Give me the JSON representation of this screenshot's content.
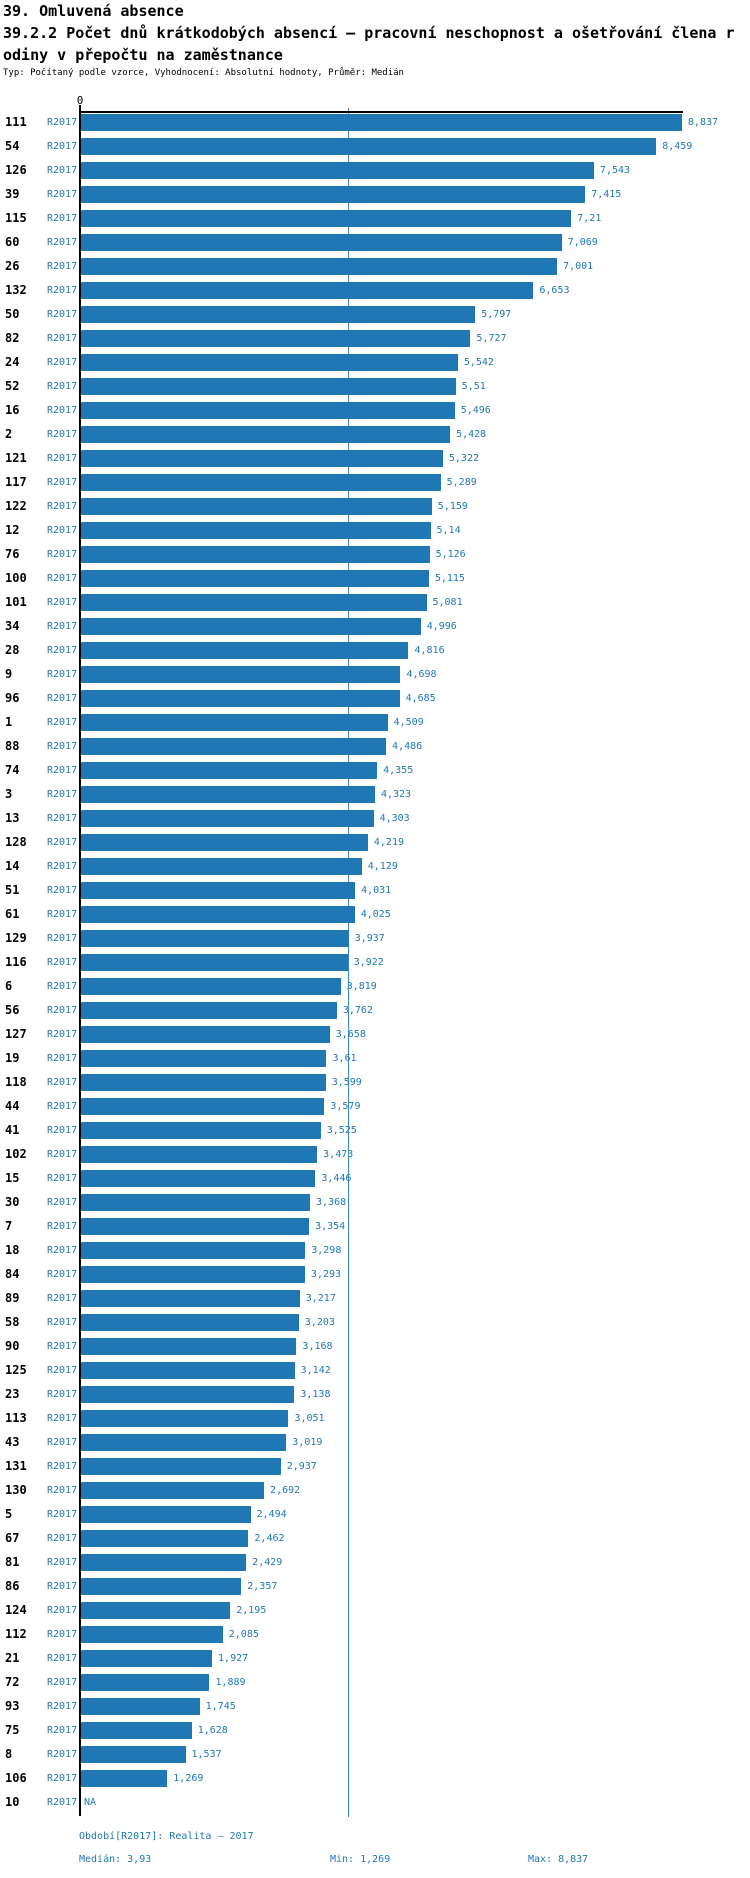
{
  "header": {
    "title": "39. Omluvená absence",
    "subtitle_line1": "39.2.2 Počet dnů krátkodobých absencí – pracovní neschopnost a ošetřování člena r",
    "subtitle_line2": "odiny v přepočtu na zaměstnance",
    "meta": "Typ: Počítaný podle vzorce, Vyhodnocení: Absolutní hodnoty, Průměr: Medián"
  },
  "chart_data": {
    "type": "bar",
    "orientation": "horizontal",
    "series_label": "R2017",
    "axis_zero_label": "0",
    "xlim": [
      0,
      8.837
    ],
    "median_value": 3.93,
    "min_value": 1.269,
    "max_value": 8.837,
    "bar_color": "#1f77b4",
    "median_line_color": "#3d8bc4",
    "rows": [
      {
        "category": "111",
        "value": 8.837,
        "display": "8,837"
      },
      {
        "category": "54",
        "value": 8.459,
        "display": "8,459"
      },
      {
        "category": "126",
        "value": 7.543,
        "display": "7,543"
      },
      {
        "category": "39",
        "value": 7.415,
        "display": "7,415"
      },
      {
        "category": "115",
        "value": 7.21,
        "display": "7,21"
      },
      {
        "category": "60",
        "value": 7.069,
        "display": "7,069"
      },
      {
        "category": "26",
        "value": 7.001,
        "display": "7,001"
      },
      {
        "category": "132",
        "value": 6.653,
        "display": "6,653"
      },
      {
        "category": "50",
        "value": 5.797,
        "display": "5,797"
      },
      {
        "category": "82",
        "value": 5.727,
        "display": "5,727"
      },
      {
        "category": "24",
        "value": 5.542,
        "display": "5,542"
      },
      {
        "category": "52",
        "value": 5.51,
        "display": "5,51"
      },
      {
        "category": "16",
        "value": 5.496,
        "display": "5,496"
      },
      {
        "category": "2",
        "value": 5.428,
        "display": "5,428"
      },
      {
        "category": "121",
        "value": 5.322,
        "display": "5,322"
      },
      {
        "category": "117",
        "value": 5.289,
        "display": "5,289"
      },
      {
        "category": "122",
        "value": 5.159,
        "display": "5,159"
      },
      {
        "category": "12",
        "value": 5.14,
        "display": "5,14"
      },
      {
        "category": "76",
        "value": 5.126,
        "display": "5,126"
      },
      {
        "category": "100",
        "value": 5.115,
        "display": "5,115"
      },
      {
        "category": "101",
        "value": 5.081,
        "display": "5,081"
      },
      {
        "category": "34",
        "value": 4.996,
        "display": "4,996"
      },
      {
        "category": "28",
        "value": 4.816,
        "display": "4,816"
      },
      {
        "category": "9",
        "value": 4.698,
        "display": "4,698"
      },
      {
        "category": "96",
        "value": 4.685,
        "display": "4,685"
      },
      {
        "category": "1",
        "value": 4.509,
        "display": "4,509"
      },
      {
        "category": "88",
        "value": 4.486,
        "display": "4,486"
      },
      {
        "category": "74",
        "value": 4.355,
        "display": "4,355"
      },
      {
        "category": "3",
        "value": 4.323,
        "display": "4,323"
      },
      {
        "category": "13",
        "value": 4.303,
        "display": "4,303"
      },
      {
        "category": "128",
        "value": 4.219,
        "display": "4,219"
      },
      {
        "category": "14",
        "value": 4.129,
        "display": "4,129"
      },
      {
        "category": "51",
        "value": 4.031,
        "display": "4,031"
      },
      {
        "category": "61",
        "value": 4.025,
        "display": "4,025"
      },
      {
        "category": "129",
        "value": 3.937,
        "display": "3,937"
      },
      {
        "category": "116",
        "value": 3.922,
        "display": "3,922"
      },
      {
        "category": "6",
        "value": 3.819,
        "display": "3,819"
      },
      {
        "category": "56",
        "value": 3.762,
        "display": "3,762"
      },
      {
        "category": "127",
        "value": 3.658,
        "display": "3,658"
      },
      {
        "category": "19",
        "value": 3.61,
        "display": "3,61"
      },
      {
        "category": "118",
        "value": 3.599,
        "display": "3,599"
      },
      {
        "category": "44",
        "value": 3.579,
        "display": "3,579"
      },
      {
        "category": "41",
        "value": 3.525,
        "display": "3,525"
      },
      {
        "category": "102",
        "value": 3.473,
        "display": "3,473"
      },
      {
        "category": "15",
        "value": 3.446,
        "display": "3,446"
      },
      {
        "category": "30",
        "value": 3.368,
        "display": "3,368"
      },
      {
        "category": "7",
        "value": 3.354,
        "display": "3,354"
      },
      {
        "category": "18",
        "value": 3.298,
        "display": "3,298"
      },
      {
        "category": "84",
        "value": 3.293,
        "display": "3,293"
      },
      {
        "category": "89",
        "value": 3.217,
        "display": "3,217"
      },
      {
        "category": "58",
        "value": 3.203,
        "display": "3,203"
      },
      {
        "category": "90",
        "value": 3.168,
        "display": "3,168"
      },
      {
        "category": "125",
        "value": 3.142,
        "display": "3,142"
      },
      {
        "category": "23",
        "value": 3.138,
        "display": "3,138"
      },
      {
        "category": "113",
        "value": 3.051,
        "display": "3,051"
      },
      {
        "category": "43",
        "value": 3.019,
        "display": "3,019"
      },
      {
        "category": "131",
        "value": 2.937,
        "display": "2,937"
      },
      {
        "category": "130",
        "value": 2.692,
        "display": "2,692"
      },
      {
        "category": "5",
        "value": 2.494,
        "display": "2,494"
      },
      {
        "category": "67",
        "value": 2.462,
        "display": "2,462"
      },
      {
        "category": "81",
        "value": 2.429,
        "display": "2,429"
      },
      {
        "category": "86",
        "value": 2.357,
        "display": "2,357"
      },
      {
        "category": "124",
        "value": 2.195,
        "display": "2,195"
      },
      {
        "category": "112",
        "value": 2.085,
        "display": "2,085"
      },
      {
        "category": "21",
        "value": 1.927,
        "display": "1,927"
      },
      {
        "category": "72",
        "value": 1.889,
        "display": "1,889"
      },
      {
        "category": "93",
        "value": 1.745,
        "display": "1,745"
      },
      {
        "category": "75",
        "value": 1.628,
        "display": "1,628"
      },
      {
        "category": "8",
        "value": 1.537,
        "display": "1,537"
      },
      {
        "category": "106",
        "value": 1.269,
        "display": "1,269"
      },
      {
        "category": "10",
        "value": null,
        "display": "NA"
      }
    ]
  },
  "footer": {
    "period": "Období[R2017]: Realita – 2017",
    "median": "Medián: 3,93",
    "min": "Min: 1,269",
    "max": "Max: 8,837"
  }
}
